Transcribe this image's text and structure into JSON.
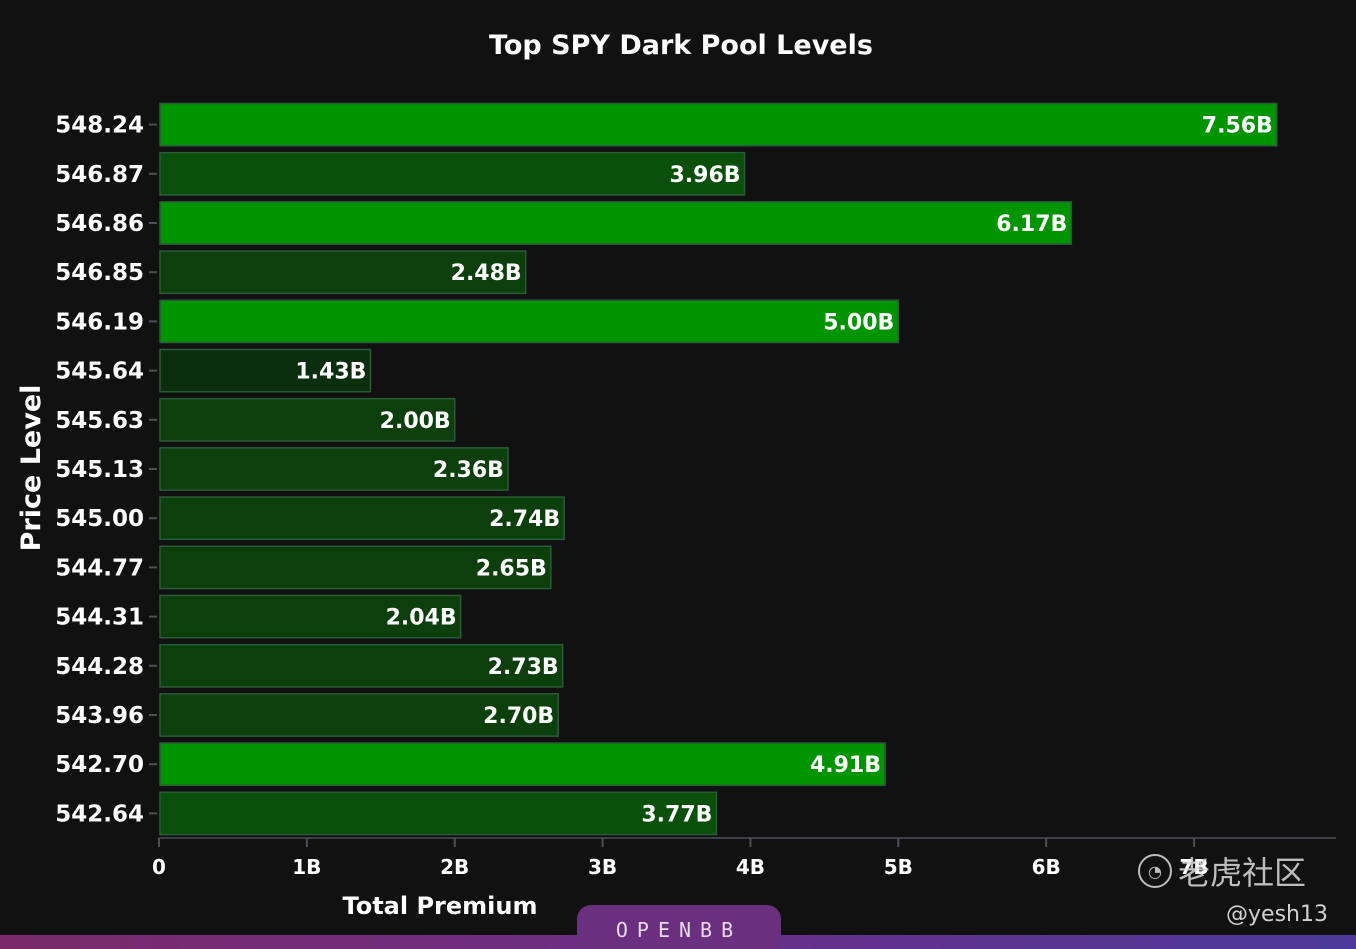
{
  "chart_data": {
    "type": "bar",
    "orientation": "horizontal",
    "title": "Top SPY Dark Pool Levels",
    "xlabel": "Total Premium",
    "ylabel": "Price Level",
    "xlim": [
      0,
      7.96
    ],
    "x_ticks": [
      "0",
      "1B",
      "2B",
      "3B",
      "4B",
      "5B",
      "6B",
      "7B"
    ],
    "categories": [
      "548.24",
      "546.87",
      "546.86",
      "546.85",
      "546.19",
      "545.64",
      "545.63",
      "545.13",
      "545.00",
      "544.77",
      "544.31",
      "544.28",
      "543.96",
      "542.70",
      "542.64"
    ],
    "values": [
      7.56,
      3.96,
      6.17,
      2.48,
      5.0,
      1.43,
      2.0,
      2.36,
      2.74,
      2.65,
      2.04,
      2.73,
      2.7,
      4.91,
      3.77
    ],
    "value_labels": [
      "7.56B",
      "3.96B",
      "6.17B",
      "2.48B",
      "5.00B",
      "1.43B",
      "2.00B",
      "2.36B",
      "2.74B",
      "2.65B",
      "2.04B",
      "2.73B",
      "2.70B",
      "4.91B",
      "3.77B"
    ],
    "grid": false,
    "colors": {
      "background": "#111111",
      "bar_bright": "#009400",
      "bar_dark": "#0d3f0d",
      "bar_mid": "#0a4f0a",
      "bar_border": "#2a5a3a",
      "text": "#ffffff",
      "axis": "#4a4f5a"
    }
  },
  "branding": {
    "logo_text": "OPENBB",
    "watermark_text": "老虎社区",
    "watermark_icon": "tiger-logo-icon",
    "user_handle": "@yesh13"
  }
}
